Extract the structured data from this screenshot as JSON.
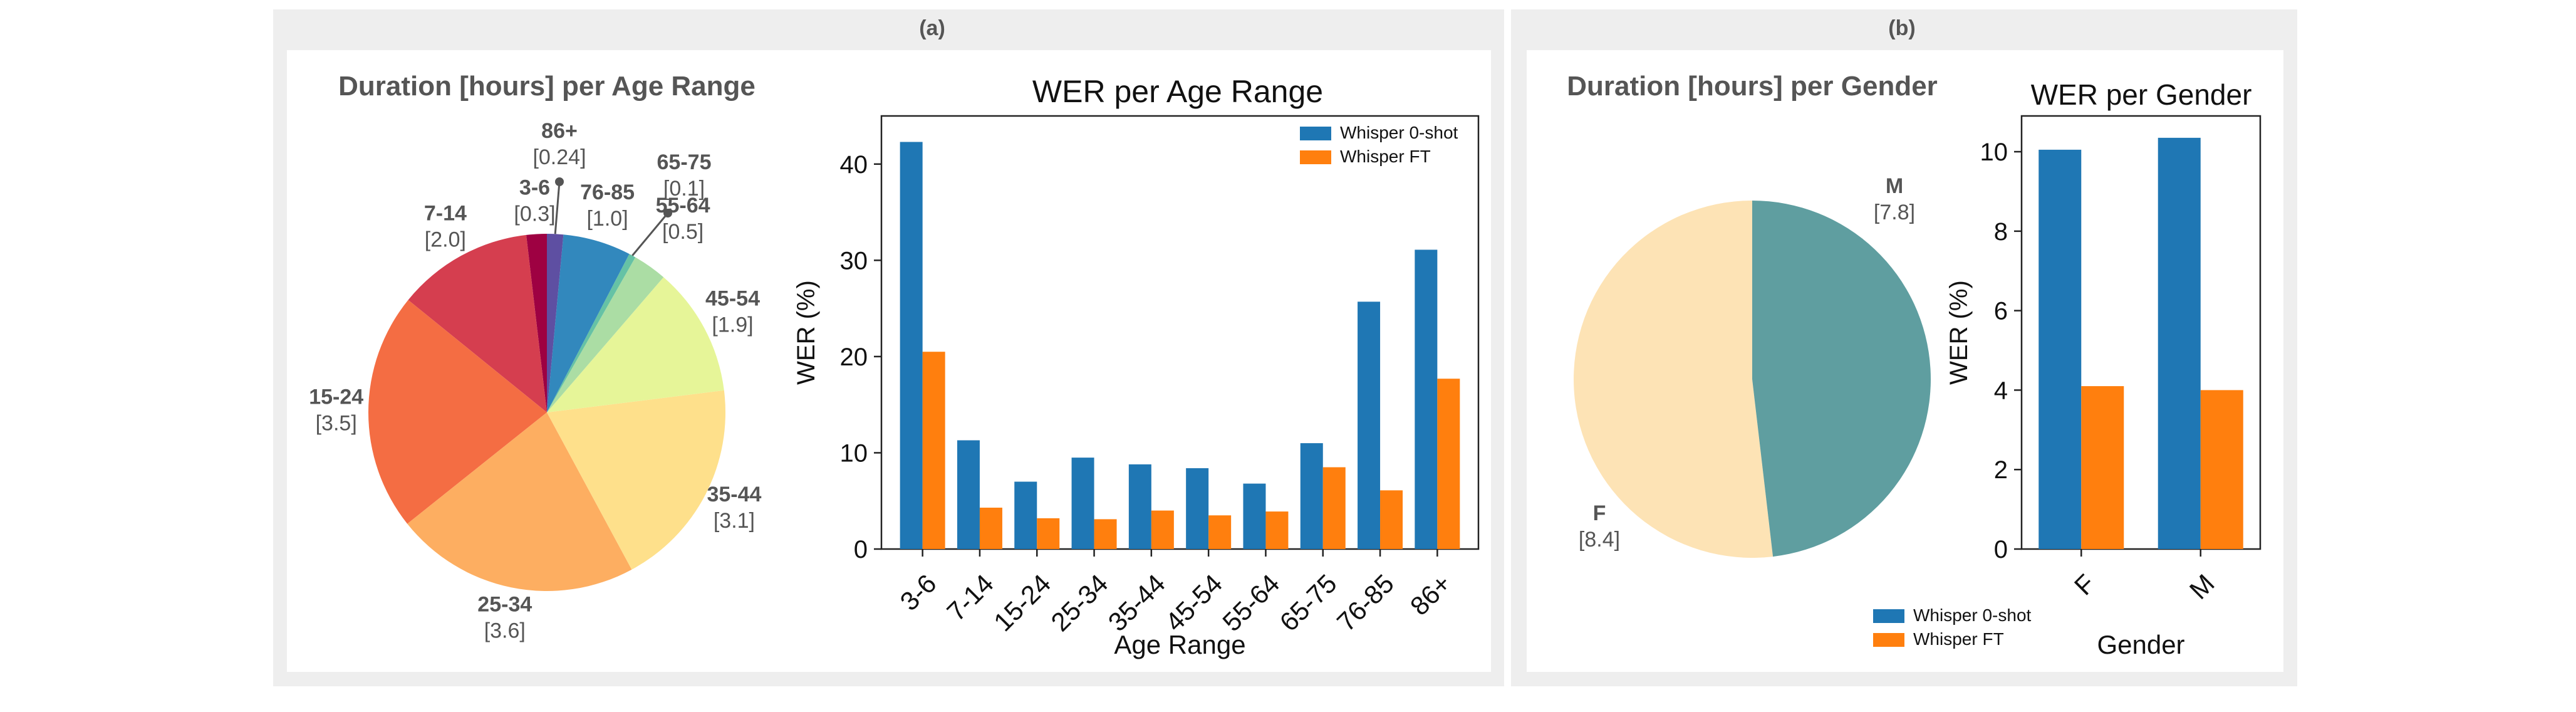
{
  "panels": {
    "a_label": "(a)",
    "b_label": "(b)"
  },
  "colors": {
    "panel_bg": "#eeeeee",
    "card_bg": "#ffffff",
    "whisper_zero": "#1f77b4",
    "whisper_ft": "#ff7f0e",
    "pie_age": [
      "#9e0142",
      "#d53e4f",
      "#f46d43",
      "#fdae61",
      "#fee08b",
      "#e6f598",
      "#abdda4",
      "#66c2a5",
      "#3288bd",
      "#5e4fa2"
    ],
    "gender_f": "#fde3b5",
    "gender_m": "#5f9ea0"
  },
  "chart_data": [
    {
      "id": "age-pie",
      "type": "pie",
      "title": "Duration [hours] per Age Range",
      "categories": [
        "3-6",
        "7-14",
        "15-24",
        "25-34",
        "35-44",
        "45-54",
        "55-64",
        "65-75",
        "76-85",
        "86+"
      ],
      "values": [
        0.3,
        2.0,
        3.5,
        3.6,
        3.1,
        1.9,
        0.5,
        0.1,
        1.0,
        0.24
      ],
      "value_labels": [
        "[0.3]",
        "[2.0]",
        "[3.5]",
        "[3.6]",
        "[3.1]",
        "[1.9]",
        "[0.5]",
        "[0.1]",
        "[1.0]",
        "[0.24]"
      ]
    },
    {
      "id": "age-bars",
      "type": "bar",
      "title": "WER per Age Range",
      "xlabel": "Age Range",
      "ylabel": "WER (%)",
      "ylim": [
        0,
        45
      ],
      "yticks": [
        0,
        10,
        20,
        30,
        40
      ],
      "categories": [
        "3-6",
        "7-14",
        "15-24",
        "25-34",
        "35-44",
        "45-54",
        "55-64",
        "65-75",
        "76-85",
        "86+"
      ],
      "series": [
        {
          "name": "Whisper 0-shot",
          "values": [
            42.3,
            11.3,
            7.0,
            9.5,
            8.8,
            8.4,
            6.8,
            11.0,
            25.7,
            31.1
          ]
        },
        {
          "name": "Whisper FT",
          "values": [
            20.5,
            4.3,
            3.2,
            3.1,
            4.0,
            3.5,
            3.9,
            8.5,
            6.1,
            17.7
          ]
        }
      ],
      "legend": "top-right"
    },
    {
      "id": "gender-pie",
      "type": "pie",
      "title": "Duration [hours] per Gender",
      "categories": [
        "F",
        "M"
      ],
      "values": [
        8.4,
        7.8
      ],
      "value_labels": [
        "[8.4]",
        "[7.8]"
      ]
    },
    {
      "id": "gender-bars",
      "type": "bar",
      "title": "WER per Gender",
      "xlabel": "Gender",
      "ylabel": "WER (%)",
      "ylim": [
        0,
        10.9
      ],
      "yticks": [
        0,
        2,
        4,
        6,
        8,
        10
      ],
      "categories": [
        "F",
        "M"
      ],
      "series": [
        {
          "name": "Whisper 0-shot",
          "values": [
            10.05,
            10.35
          ]
        },
        {
          "name": "Whisper FT",
          "values": [
            4.1,
            4.0
          ]
        }
      ],
      "legend": "bottom-left"
    }
  ]
}
